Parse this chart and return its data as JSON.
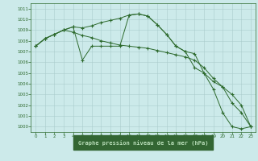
{
  "line1": [
    1007.5,
    1008.2,
    1008.6,
    1009.0,
    1009.3,
    1006.2,
    1007.5,
    1007.5,
    1007.5,
    1007.5,
    1010.4,
    1010.5,
    1010.3,
    1009.5,
    1008.6,
    1007.5,
    1007.0,
    1006.8,
    1005.0,
    1003.5,
    1001.3,
    1000.0,
    999.8,
    1000.0
  ],
  "line2": [
    1007.5,
    1008.2,
    1008.6,
    1009.0,
    1009.3,
    1009.2,
    1009.4,
    1009.7,
    1009.9,
    1010.1,
    1010.4,
    1010.5,
    1010.3,
    1009.5,
    1008.6,
    1007.5,
    1007.0,
    1005.5,
    1005.0,
    1004.2,
    1003.7,
    1002.2,
    1001.3,
    1000.0
  ],
  "line3": [
    1007.5,
    1008.2,
    1008.6,
    1009.0,
    1008.8,
    1008.5,
    1008.3,
    1008.0,
    1007.8,
    1007.6,
    1007.5,
    1007.4,
    1007.3,
    1007.1,
    1006.9,
    1006.7,
    1006.5,
    1006.2,
    1005.5,
    1004.5,
    1003.7,
    1003.0,
    1002.0,
    1000.0
  ],
  "hours": [
    0,
    1,
    2,
    3,
    4,
    5,
    6,
    7,
    8,
    9,
    10,
    11,
    12,
    13,
    14,
    15,
    16,
    17,
    18,
    19,
    20,
    21,
    22,
    23
  ],
  "ylim": [
    999.5,
    1011.5
  ],
  "ytick_min": 1000,
  "ytick_max": 1011,
  "xticks": [
    0,
    1,
    2,
    3,
    4,
    5,
    6,
    7,
    8,
    9,
    10,
    11,
    12,
    13,
    14,
    15,
    16,
    17,
    18,
    19,
    20,
    21,
    22,
    23
  ],
  "xlabel": "Graphe pression niveau de la mer (hPa)",
  "line_color": "#2d6a2d",
  "bg_color": "#cceaea",
  "grid_color": "#aacccc",
  "label_bg": "#336633",
  "label_fg": "#b8ddb8"
}
